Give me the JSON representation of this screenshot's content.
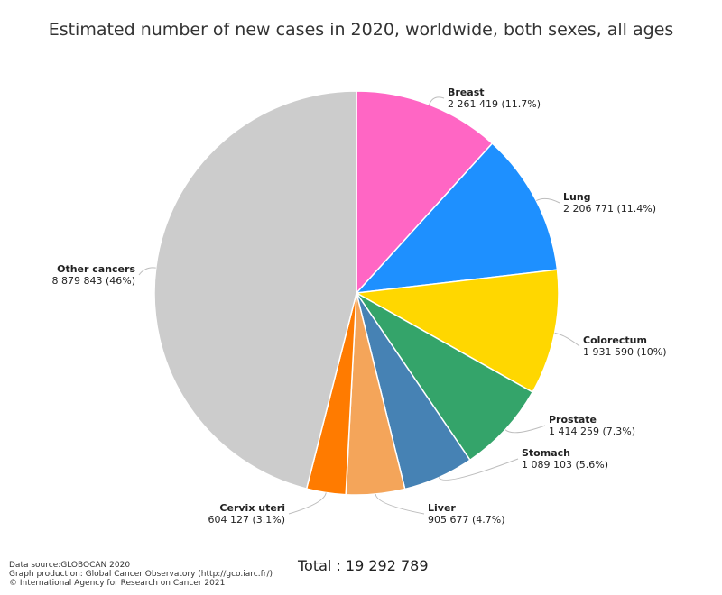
{
  "chart_data": {
    "type": "pie",
    "title": "Estimated number of new cases in 2020, worldwide, both sexes, all ages",
    "slices": [
      {
        "name": "Breast",
        "value": 2261419,
        "value_label": "2 261 419 (11.7%)",
        "color": "#ff66c4"
      },
      {
        "name": "Lung",
        "value": 2206771,
        "value_label": "2 206 771 (11.4%)",
        "color": "#1e90ff"
      },
      {
        "name": "Colorectum",
        "value": 1931590,
        "value_label": "1 931 590 (10%)",
        "color": "#ffd700"
      },
      {
        "name": "Prostate",
        "value": 1414259,
        "value_label": "1 414 259 (7.3%)",
        "color": "#34a46a"
      },
      {
        "name": "Stomach",
        "value": 1089103,
        "value_label": "1 089 103 (5.6%)",
        "color": "#4682b4"
      },
      {
        "name": "Liver",
        "value": 905677,
        "value_label": "905 677 (4.7%)",
        "color": "#f4a55a"
      },
      {
        "name": "Cervix uteri",
        "value": 604127,
        "value_label": "604 127 (3.1%)",
        "color": "#ff7b00"
      },
      {
        "name": "Other cancers",
        "value": 8879843,
        "value_label": "8 879 843 (46%)",
        "color": "#cccccc"
      }
    ],
    "total_label": "Total : 19 292 789"
  },
  "footer": {
    "source": "Data source:GLOBOCAN 2020",
    "production": "Graph production: Global Cancer Observatory (http://gco.iarc.fr/)",
    "copyright": "© International Agency for Research on Cancer 2021"
  }
}
